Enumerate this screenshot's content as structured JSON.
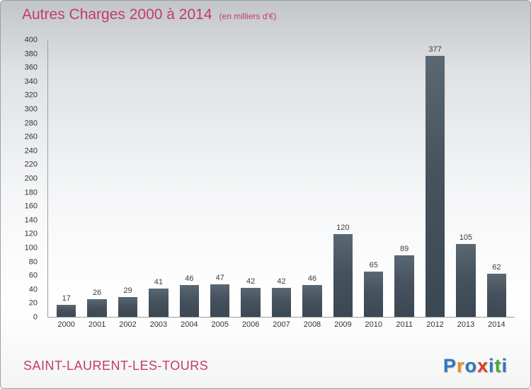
{
  "title": {
    "main": "Autres Charges 2000 à 2014",
    "sub": "(en milliers d'€)"
  },
  "footer": {
    "location": "SAINT-LAURENT-LES-TOURS",
    "logo_letters": [
      {
        "ch": "P",
        "color": "#2e75c6"
      },
      {
        "ch": "r",
        "color": "#f08c1d"
      },
      {
        "ch": "o",
        "color": "#2e75c6"
      },
      {
        "ch": "x",
        "color": "#e03c23"
      },
      {
        "ch": "i",
        "color": "#2e75c6"
      },
      {
        "ch": "t",
        "color": "#46a935"
      },
      {
        "ch": "i",
        "color": "#2e75c6"
      }
    ]
  },
  "colors": {
    "title": "#c43a6c",
    "bar": "#46535e",
    "axis_text": "#333333"
  },
  "chart_data": {
    "type": "bar",
    "title": "Autres Charges 2000 à 2014",
    "subtitle": "(en milliers d'€)",
    "categories": [
      "2000",
      "2001",
      "2002",
      "2003",
      "2004",
      "2005",
      "2006",
      "2007",
      "2008",
      "2009",
      "2010",
      "2011",
      "2012",
      "2013",
      "2014"
    ],
    "values": [
      17,
      26,
      29,
      41,
      46,
      47,
      42,
      42,
      46,
      120,
      65,
      89,
      377,
      105,
      62
    ],
    "xlabel": "",
    "ylabel": "",
    "ylim": [
      0,
      400
    ],
    "ytick_step": 20,
    "grid": false,
    "legend": false
  }
}
